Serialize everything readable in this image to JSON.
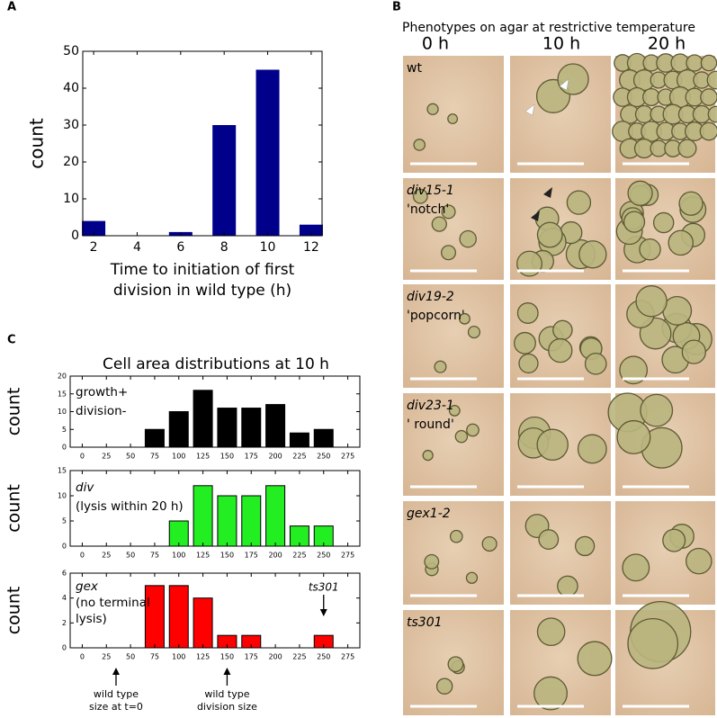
{
  "panel_labels": [
    "A",
    "B",
    "C"
  ],
  "chart_data": [
    {
      "type": "bar",
      "x": [
        2,
        4,
        6,
        8,
        10,
        12
      ],
      "values": [
        4,
        0,
        1,
        30,
        45,
        3
      ],
      "color": "#00008b",
      "xlim": [
        1.5,
        12.5
      ],
      "xticks": [
        2,
        4,
        6,
        8,
        10,
        12
      ],
      "ylim": [
        0,
        50
      ],
      "yticks": [
        0,
        10,
        20,
        30,
        40,
        50
      ],
      "xlabel": [
        "Time to initiation of first",
        "division in wild type (h)"
      ],
      "ylabel": "count"
    },
    {
      "type": "bar",
      "x": [
        75,
        100,
        125,
        150,
        175,
        200,
        225,
        250
      ],
      "values": [
        5,
        10,
        16,
        11,
        11,
        12,
        4,
        5
      ],
      "color": "#000000",
      "xlim": [
        -12.5,
        287.5
      ],
      "xticks": [
        0,
        25,
        50,
        75,
        100,
        125,
        150,
        175,
        200,
        225,
        250,
        275
      ],
      "ylim": [
        0,
        20
      ],
      "yticks": [
        0,
        5,
        10,
        15,
        20
      ],
      "ylabel": "count",
      "annotations": [
        "growth+",
        "division-"
      ]
    },
    {
      "type": "bar",
      "x": [
        100,
        125,
        150,
        175,
        200,
        225,
        250
      ],
      "values": [
        5,
        12,
        10,
        10,
        12,
        4,
        4
      ],
      "color": "#22ee22",
      "xlim": [
        -12.5,
        287.5
      ],
      "xticks": [
        0,
        25,
        50,
        75,
        100,
        125,
        150,
        175,
        200,
        225,
        250,
        275
      ],
      "ylim": [
        0,
        15
      ],
      "yticks": [
        0,
        5,
        10,
        15
      ],
      "ylabel": "count",
      "annotations": [
        "div",
        "(lysis within 20 h)"
      ]
    },
    {
      "type": "bar",
      "x": [
        75,
        100,
        125,
        150,
        175,
        250
      ],
      "values": [
        5,
        5,
        4,
        1,
        1,
        1
      ],
      "color": "#ff0000",
      "xlim": [
        -12.5,
        287.5
      ],
      "xticks": [
        0,
        25,
        50,
        75,
        100,
        125,
        150,
        175,
        200,
        225,
        250,
        275
      ],
      "ylim": [
        0,
        6
      ],
      "yticks": [
        0,
        2,
        4,
        6
      ],
      "ylabel": "count",
      "annotations": [
        "gex",
        "(no terminal",
        "lysis)"
      ],
      "pointers": [
        {
          "label": "ts301",
          "x": 250
        }
      ],
      "below_axis_notes": [
        {
          "lines": [
            "wild type",
            "size at t=0"
          ],
          "x": 35
        },
        {
          "lines": [
            "wild type",
            "division size"
          ],
          "x": 150
        }
      ]
    }
  ],
  "panel_c_title": "Cell area distributions at 10 h",
  "panel_b": {
    "title": "Phenotypes on agar at restrictive temperature",
    "columns": [
      "0 h",
      "10 h",
      "20 h"
    ],
    "rows": [
      {
        "label": "wt"
      },
      {
        "label": "div15-1",
        "nickname": "'notch'"
      },
      {
        "label": "div19-2",
        "nickname": "'popcorn'"
      },
      {
        "label": "div23-1",
        "nickname": "' round'"
      },
      {
        "label": "gex1-2"
      },
      {
        "label": "ts301"
      }
    ]
  }
}
